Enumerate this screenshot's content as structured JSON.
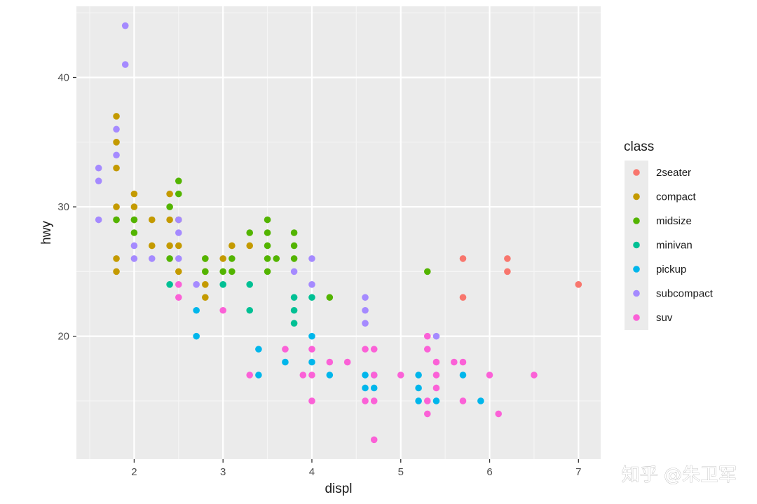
{
  "watermark": "知乎 @朱卫军",
  "colors": {
    "panel_bg": "#ebebeb",
    "grid_major": "#ffffff",
    "grid_minor": "#f5f5f5",
    "legend_key_bg": "#ebebeb"
  },
  "chart_data": {
    "type": "scatter",
    "xlabel": "displ",
    "ylabel": "hwy",
    "xlim": [
      1.35,
      7.25
    ],
    "ylim": [
      10.5,
      45.5
    ],
    "xticks": [
      2,
      3,
      4,
      5,
      6,
      7
    ],
    "yticks": [
      20,
      30,
      40
    ],
    "grid": true,
    "legend": {
      "title": "class",
      "position": "right"
    },
    "series": [
      {
        "name": "2seater",
        "color": "#F8766D",
        "points": [
          [
            5.7,
            26
          ],
          [
            5.7,
            23
          ],
          [
            6.2,
            26
          ],
          [
            6.2,
            25
          ],
          [
            7.0,
            24
          ]
        ]
      },
      {
        "name": "compact",
        "color": "#C49A00",
        "points": [
          [
            1.8,
            37
          ],
          [
            1.8,
            35
          ],
          [
            1.8,
            33
          ],
          [
            1.8,
            30
          ],
          [
            1.8,
            29
          ],
          [
            1.8,
            26
          ],
          [
            1.8,
            25
          ],
          [
            2.0,
            31
          ],
          [
            2.0,
            30
          ],
          [
            2.0,
            29
          ],
          [
            2.2,
            29
          ],
          [
            2.2,
            27
          ],
          [
            2.4,
            31
          ],
          [
            2.4,
            29
          ],
          [
            2.4,
            27
          ],
          [
            2.5,
            29
          ],
          [
            2.5,
            27
          ],
          [
            2.5,
            25
          ],
          [
            2.8,
            26
          ],
          [
            2.8,
            25
          ],
          [
            2.8,
            24
          ],
          [
            2.8,
            23
          ],
          [
            3.0,
            26
          ],
          [
            3.1,
            27
          ],
          [
            3.3,
            27
          ]
        ]
      },
      {
        "name": "midsize",
        "color": "#53B400",
        "points": [
          [
            1.8,
            29
          ],
          [
            2.0,
            29
          ],
          [
            2.0,
            28
          ],
          [
            2.4,
            30
          ],
          [
            2.4,
            26
          ],
          [
            2.5,
            32
          ],
          [
            2.5,
            31
          ],
          [
            2.8,
            26
          ],
          [
            2.8,
            25
          ],
          [
            3.0,
            25
          ],
          [
            3.1,
            26
          ],
          [
            3.1,
            25
          ],
          [
            3.3,
            28
          ],
          [
            3.5,
            29
          ],
          [
            3.5,
            28
          ],
          [
            3.5,
            27
          ],
          [
            3.5,
            26
          ],
          [
            3.5,
            25
          ],
          [
            3.6,
            26
          ],
          [
            3.8,
            28
          ],
          [
            3.8,
            27
          ],
          [
            3.8,
            26
          ],
          [
            4.2,
            23
          ],
          [
            5.3,
            25
          ]
        ]
      },
      {
        "name": "minivan",
        "color": "#00C094",
        "points": [
          [
            2.4,
            24
          ],
          [
            3.0,
            24
          ],
          [
            3.3,
            24
          ],
          [
            3.3,
            22
          ],
          [
            3.8,
            23
          ],
          [
            3.8,
            22
          ],
          [
            3.8,
            21
          ],
          [
            4.0,
            23
          ]
        ]
      },
      {
        "name": "pickup",
        "color": "#00B6EB",
        "points": [
          [
            2.7,
            22
          ],
          [
            2.7,
            20
          ],
          [
            3.4,
            19
          ],
          [
            3.4,
            17
          ],
          [
            3.7,
            18
          ],
          [
            4.0,
            20
          ],
          [
            4.0,
            18
          ],
          [
            4.2,
            17
          ],
          [
            4.6,
            17
          ],
          [
            4.6,
            16
          ],
          [
            4.7,
            17
          ],
          [
            4.7,
            16
          ],
          [
            5.2,
            17
          ],
          [
            5.2,
            16
          ],
          [
            5.2,
            15
          ],
          [
            5.4,
            15
          ],
          [
            5.7,
            17
          ],
          [
            5.9,
            15
          ]
        ]
      },
      {
        "name": "subcompact",
        "color": "#A58AFF",
        "points": [
          [
            1.6,
            33
          ],
          [
            1.6,
            32
          ],
          [
            1.6,
            29
          ],
          [
            1.8,
            36
          ],
          [
            1.8,
            34
          ],
          [
            1.9,
            44
          ],
          [
            1.9,
            41
          ],
          [
            2.0,
            27
          ],
          [
            2.0,
            26
          ],
          [
            2.2,
            26
          ],
          [
            2.5,
            29
          ],
          [
            2.5,
            28
          ],
          [
            2.5,
            26
          ],
          [
            2.7,
            24
          ],
          [
            3.8,
            25
          ],
          [
            4.0,
            26
          ],
          [
            4.0,
            24
          ],
          [
            4.6,
            23
          ],
          [
            4.6,
            22
          ],
          [
            4.6,
            21
          ],
          [
            5.4,
            20
          ]
        ]
      },
      {
        "name": "suv",
        "color": "#FB61D7",
        "points": [
          [
            2.5,
            24
          ],
          [
            2.5,
            23
          ],
          [
            3.0,
            22
          ],
          [
            3.3,
            17
          ],
          [
            3.7,
            19
          ],
          [
            3.9,
            17
          ],
          [
            4.0,
            19
          ],
          [
            4.0,
            17
          ],
          [
            4.0,
            15
          ],
          [
            4.2,
            18
          ],
          [
            4.4,
            18
          ],
          [
            4.6,
            19
          ],
          [
            4.6,
            15
          ],
          [
            4.7,
            19
          ],
          [
            4.7,
            17
          ],
          [
            4.7,
            15
          ],
          [
            4.7,
            12
          ],
          [
            5.0,
            17
          ],
          [
            5.3,
            20
          ],
          [
            5.3,
            19
          ],
          [
            5.3,
            15
          ],
          [
            5.3,
            14
          ],
          [
            5.4,
            18
          ],
          [
            5.4,
            17
          ],
          [
            5.4,
            16
          ],
          [
            5.6,
            18
          ],
          [
            5.7,
            18
          ],
          [
            5.7,
            15
          ],
          [
            6.0,
            17
          ],
          [
            6.1,
            14
          ],
          [
            6.5,
            17
          ]
        ]
      }
    ]
  }
}
